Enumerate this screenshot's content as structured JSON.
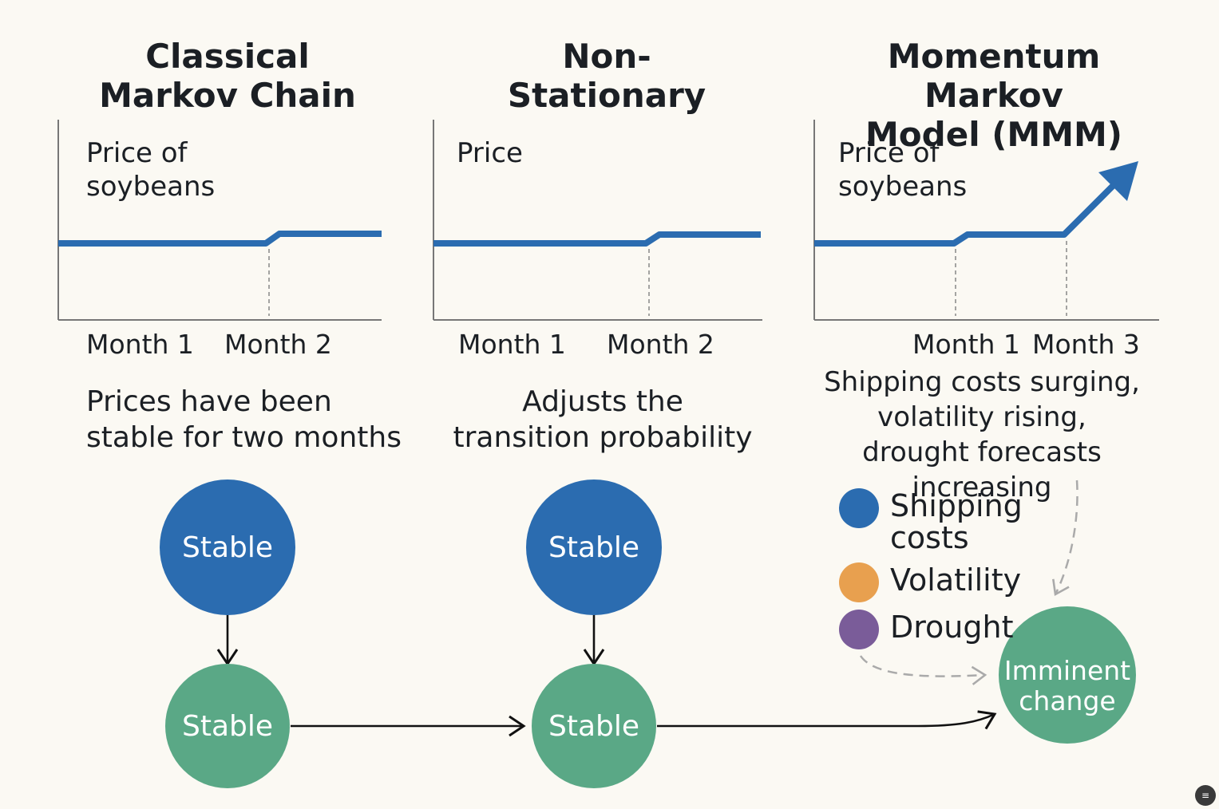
{
  "panels": [
    {
      "title": "Classical\nMarkov Chain",
      "y_label": "Price of\nsoybeans",
      "x_labels": [
        "Month 1",
        "Month 2"
      ],
      "description": "Prices have been\nstable for two months"
    },
    {
      "title": "Non-\nStationary",
      "y_label": "Price",
      "x_labels": [
        "Month 1",
        "Month 2"
      ],
      "description": "Adjusts the\ntransition probability"
    },
    {
      "title": "Momentum Markov\nModel (MMM)",
      "y_label": "Price of\nsoybeans",
      "x_labels": [
        "Month 1",
        "Month 3"
      ],
      "description": "Shipping costs surging,\nvolatility rising,\ndrought forecasts increasing"
    }
  ],
  "nodes": {
    "stable_top_1": "Stable",
    "stable_bottom_1": "Stable",
    "stable_top_2": "Stable",
    "stable_bottom_2": "Stable",
    "imminent_line1": "Imminent",
    "imminent_line2": "change"
  },
  "legend": [
    {
      "label": "Shipping\ncosts",
      "color": "#2b6cb0",
      "icon": "blue-dot-icon"
    },
    {
      "label": "Volatility",
      "color": "#e8a04f",
      "icon": "orange-dot-icon"
    },
    {
      "label": "Drought",
      "color": "#7a5c99",
      "icon": "purple-dot-icon"
    }
  ],
  "colors": {
    "line": "#2b6cb0",
    "stable_node": "#2b6cb0",
    "state_node": "#5aa886",
    "axis": "#777777",
    "dashed_arrow": "#aaaaaa"
  }
}
